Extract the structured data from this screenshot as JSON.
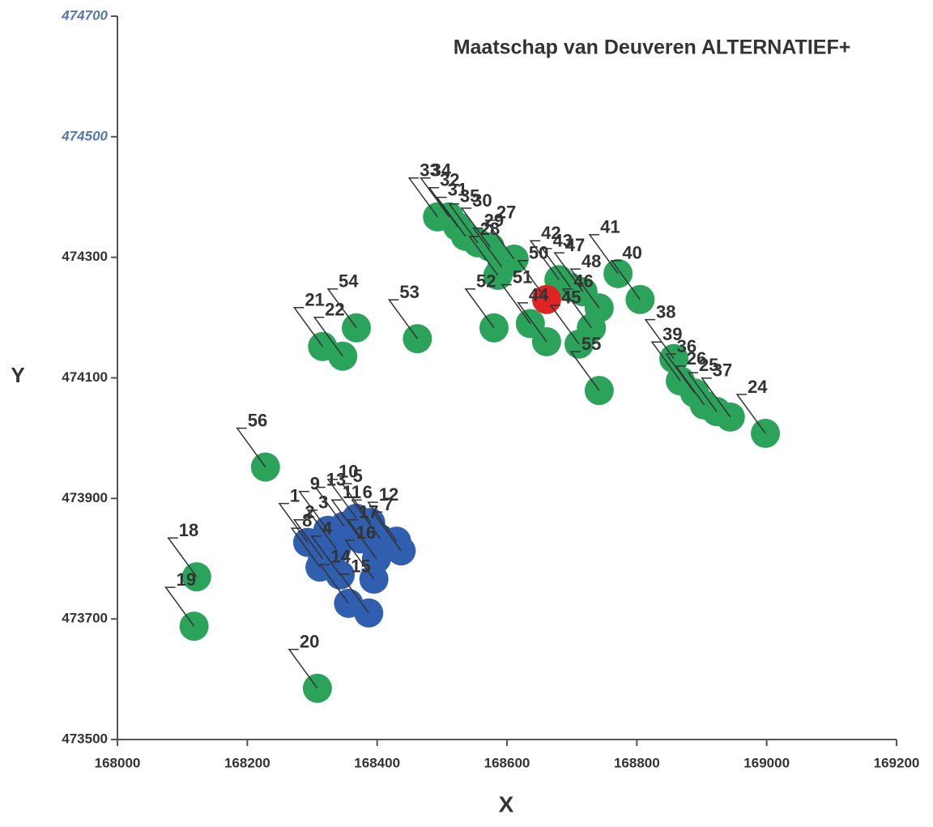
{
  "chart_data": {
    "type": "scatter",
    "title": "Maatschap van Deuveren ALTERNATIEF+",
    "x_label": "X",
    "y_label": "Y",
    "xlim": [
      168000,
      169200
    ],
    "ylim": [
      473500,
      474700
    ],
    "xticks": [
      168000,
      168200,
      168400,
      168600,
      168800,
      169000,
      169200
    ],
    "yticks": [
      473500,
      473700,
      473900,
      474100,
      474300,
      474500,
      474700
    ],
    "series": [
      {
        "color": "#2ca35a",
        "labels": [
          "18",
          "19",
          "20",
          "56",
          "21",
          "22",
          "54",
          "53",
          "52",
          "55",
          "24",
          "40",
          "41",
          "38",
          "39",
          "37",
          "36",
          "26",
          "25",
          "33",
          "34",
          "32",
          "31",
          "30",
          "35",
          "27",
          "29",
          "28",
          "51",
          "42",
          "43",
          "47",
          "48",
          "44",
          "45",
          "46"
        ],
        "x": [
          168122,
          168118,
          168308,
          168228,
          168316,
          168347,
          168368,
          168462,
          168580,
          168742,
          168998,
          168805,
          168771,
          168857,
          168867,
          168944,
          168889,
          168904,
          168923,
          168493,
          168511,
          168524,
          168536,
          168574,
          168555,
          168611,
          168592,
          168586,
          168636,
          168680,
          168698,
          168717,
          168742,
          168661,
          168711,
          168730
        ],
        "y": [
          473770,
          473688,
          473585,
          473952,
          474152,
          474136,
          474183,
          474165,
          474183,
          474079,
          474008,
          474230,
          474273,
          474132,
          474095,
          474035,
          474075,
          474055,
          474044,
          474367,
          474367,
          474351,
          474335,
          474317,
          474324,
          474297,
          474284,
          474270,
          474190,
          474263,
          474250,
          474243,
          474216,
          474160,
          474156,
          474183
        ]
      },
      {
        "color": "#2f5fae",
        "labels": [
          "1",
          "2",
          "3",
          "10",
          "5",
          "6",
          "12",
          "7",
          "14",
          "15",
          "16",
          "4",
          "11",
          "9",
          "13",
          "8",
          "17"
        ],
        "x": [
          168293,
          168316,
          168337,
          168368,
          168390,
          168405,
          168430,
          168437,
          168356,
          168387,
          168395,
          168343,
          168374,
          168324,
          168349,
          168312,
          168399
        ],
        "y": [
          473827,
          473800,
          473816,
          473867,
          473860,
          473833,
          473829,
          473813,
          473726,
          473710,
          473766,
          473773,
          473833,
          473847,
          473854,
          473786,
          473800
        ]
      },
      {
        "color": "#e02424",
        "labels": [
          "50"
        ],
        "x": [
          168661
        ],
        "y": [
          474230
        ]
      }
    ]
  }
}
